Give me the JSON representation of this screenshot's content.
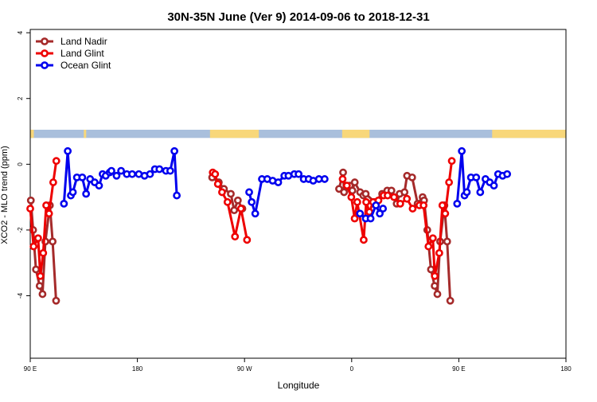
{
  "chart_data": {
    "type": "line",
    "title": "30N-35N June (Ver 9)   2014-09-06 to 2018-12-31",
    "xlabel": "Longitude",
    "ylabel": "XCO2 - MLO trend (ppm)",
    "xlim": [
      90,
      540
    ],
    "ylim": [
      -5.9,
      4.1
    ],
    "x_ticks": [
      {
        "value": 90,
        "label": "90 E"
      },
      {
        "value": 180,
        "label": "180"
      },
      {
        "value": 270,
        "label": "90 W"
      },
      {
        "value": 360,
        "label": "0"
      },
      {
        "value": 450,
        "label": "90 E"
      },
      {
        "value": 540,
        "label": "180"
      }
    ],
    "y_ticks": [
      {
        "value": -4,
        "label": "-4"
      },
      {
        "value": -2,
        "label": "-2"
      },
      {
        "value": 0,
        "label": "0"
      },
      {
        "value": 2,
        "label": "2"
      },
      {
        "value": 4,
        "label": "4"
      }
    ],
    "legend_position": "top-left",
    "landmask_band": {
      "y_range": [
        0.8,
        1.05
      ],
      "land_color": "#f8d77a",
      "ocean_color": "#a9bfdc",
      "land_x_ranges": [
        [
          90,
          93
        ],
        [
          135,
          137
        ],
        [
          241,
          282
        ],
        [
          352,
          375
        ],
        [
          478,
          540
        ]
      ]
    },
    "series": [
      {
        "name": "Land Nadir",
        "color": "#a52a2a",
        "points": [
          [
            90.5,
            -1.1
          ],
          [
            92.4,
            -2.0
          ],
          [
            94.8,
            -3.2
          ],
          [
            97.9,
            -3.7
          ],
          [
            100.3,
            -3.95
          ],
          [
            102.7,
            -2.35
          ],
          [
            106.5,
            -1.25
          ],
          [
            108.8,
            -2.35
          ],
          [
            111.7,
            -4.15
          ],
          [
            242.8,
            -0.4
          ],
          [
            248.4,
            -0.55
          ],
          [
            252.7,
            -0.75
          ],
          [
            258.5,
            -0.9
          ],
          [
            261.3,
            -1.4
          ],
          [
            264.4,
            -1.1
          ],
          [
            268.2,
            -1.35
          ],
          [
            349.4,
            -0.75
          ],
          [
            352.8,
            -0.25
          ],
          [
            353.6,
            -0.85
          ],
          [
            358.5,
            -0.65
          ],
          [
            360.6,
            -0.8
          ],
          [
            362.6,
            -0.55
          ],
          [
            367.1,
            -0.85
          ],
          [
            369.8,
            -0.95
          ],
          [
            371.8,
            -0.9
          ],
          [
            379.4,
            -1.15
          ],
          [
            385.6,
            -0.9
          ],
          [
            389.9,
            -0.8
          ],
          [
            393.4,
            -0.8
          ],
          [
            397.8,
            -1.2
          ],
          [
            400.3,
            -0.9
          ],
          [
            404.4,
            -0.85
          ],
          [
            406.5,
            -0.35
          ],
          [
            410.8,
            -0.4
          ],
          [
            415.4,
            -1.2
          ],
          [
            419.6,
            -1.0
          ],
          [
            420.8,
            -1.1
          ],
          [
            423.5,
            -2.0
          ],
          [
            426.6,
            -3.2
          ],
          [
            429.7,
            -3.7
          ],
          [
            432.0,
            -3.95
          ],
          [
            434.3,
            -2.35
          ],
          [
            437.9,
            -1.25
          ],
          [
            440.2,
            -2.35
          ],
          [
            442.8,
            -4.15
          ]
        ]
      },
      {
        "name": "Land Glint",
        "color": "#ee0000",
        "points": [
          [
            90.0,
            -1.35
          ],
          [
            92.8,
            -2.5
          ],
          [
            96.6,
            -2.25
          ],
          [
            98.5,
            -3.4
          ],
          [
            100.9,
            -2.7
          ],
          [
            103.4,
            -1.25
          ],
          [
            105.8,
            -1.5
          ],
          [
            109.3,
            -0.55
          ],
          [
            111.9,
            0.1
          ],
          [
            243.3,
            -0.25
          ],
          [
            245.3,
            -0.3
          ],
          [
            247.6,
            -0.6
          ],
          [
            251.1,
            -0.85
          ],
          [
            255.7,
            -1.15
          ],
          [
            262.0,
            -2.2
          ],
          [
            267.0,
            -1.35
          ],
          [
            272.1,
            -2.3
          ],
          [
            352.4,
            -0.45
          ],
          [
            356.0,
            -0.65
          ],
          [
            359.7,
            -1.0
          ],
          [
            362.5,
            -1.65
          ],
          [
            364.7,
            -1.15
          ],
          [
            370.1,
            -2.3
          ],
          [
            372.2,
            -1.15
          ],
          [
            374.9,
            -1.45
          ],
          [
            378.0,
            -1.15
          ],
          [
            382.5,
            -1.1
          ],
          [
            386.8,
            -0.95
          ],
          [
            390.2,
            -0.95
          ],
          [
            395.6,
            -1.0
          ],
          [
            400.8,
            -1.2
          ],
          [
            406.4,
            -1.05
          ],
          [
            411.2,
            -1.35
          ],
          [
            416.9,
            -1.25
          ],
          [
            420.4,
            -1.25
          ],
          [
            424.5,
            -2.5
          ],
          [
            428.2,
            -2.25
          ],
          [
            429.8,
            -3.4
          ],
          [
            433.6,
            -2.7
          ],
          [
            436.2,
            -1.25
          ],
          [
            438.6,
            -1.5
          ],
          [
            441.8,
            -0.55
          ],
          [
            444.1,
            0.1
          ]
        ]
      },
      {
        "name": "Ocean Glint",
        "color": "#0000ee",
        "points": [
          [
            118.3,
            -1.2
          ],
          [
            121.5,
            0.4
          ],
          [
            124.1,
            -0.95
          ],
          [
            125.8,
            -0.85
          ],
          [
            129.2,
            -0.4
          ],
          [
            133.7,
            -0.4
          ],
          [
            136.9,
            -0.9
          ],
          [
            140.3,
            -0.45
          ],
          [
            144.1,
            -0.55
          ],
          [
            147.8,
            -0.65
          ],
          [
            150.8,
            -0.3
          ],
          [
            153.4,
            -0.35
          ],
          [
            156.7,
            -0.25
          ],
          [
            158.2,
            -0.2
          ],
          [
            162.5,
            -0.35
          ],
          [
            166.3,
            -0.2
          ],
          [
            171.1,
            -0.3
          ],
          [
            175.6,
            -0.3
          ],
          [
            181.2,
            -0.3
          ],
          [
            186.0,
            -0.35
          ],
          [
            190.6,
            -0.3
          ],
          [
            194.7,
            -0.15
          ],
          [
            198.5,
            -0.15
          ],
          [
            204.0,
            -0.2
          ],
          [
            207.6,
            -0.2
          ],
          [
            211.1,
            0.4
          ],
          [
            213.1,
            -0.95
          ],
          [
            273.9,
            -0.85
          ],
          [
            276.0,
            -1.15
          ],
          [
            279.0,
            -1.5
          ],
          [
            284.6,
            -0.45
          ],
          [
            289.1,
            -0.45
          ],
          [
            293.6,
            -0.5
          ],
          [
            298.3,
            -0.55
          ],
          [
            303.4,
            -0.35
          ],
          [
            306.9,
            -0.35
          ],
          [
            311.8,
            -0.3
          ],
          [
            315.4,
            -0.3
          ],
          [
            319.7,
            -0.45
          ],
          [
            323.9,
            -0.45
          ],
          [
            327.7,
            -0.5
          ],
          [
            332.5,
            -0.45
          ],
          [
            337.3,
            -0.45
          ],
          [
            367.0,
            -1.5
          ],
          [
            371.8,
            -1.65
          ],
          [
            375.9,
            -1.65
          ],
          [
            380.4,
            -1.25
          ],
          [
            383.6,
            -1.5
          ],
          [
            386.3,
            -1.35
          ],
          [
            448.6,
            -1.2
          ],
          [
            452.5,
            0.4
          ],
          [
            454.8,
            -0.95
          ],
          [
            456.7,
            -0.85
          ],
          [
            460.2,
            -0.4
          ],
          [
            464.6,
            -0.4
          ],
          [
            468.0,
            -0.85
          ],
          [
            472.4,
            -0.45
          ],
          [
            476.0,
            -0.55
          ],
          [
            479.5,
            -0.65
          ],
          [
            483.0,
            -0.3
          ],
          [
            486.8,
            -0.35
          ],
          [
            490.6,
            -0.3
          ]
        ]
      }
    ]
  }
}
